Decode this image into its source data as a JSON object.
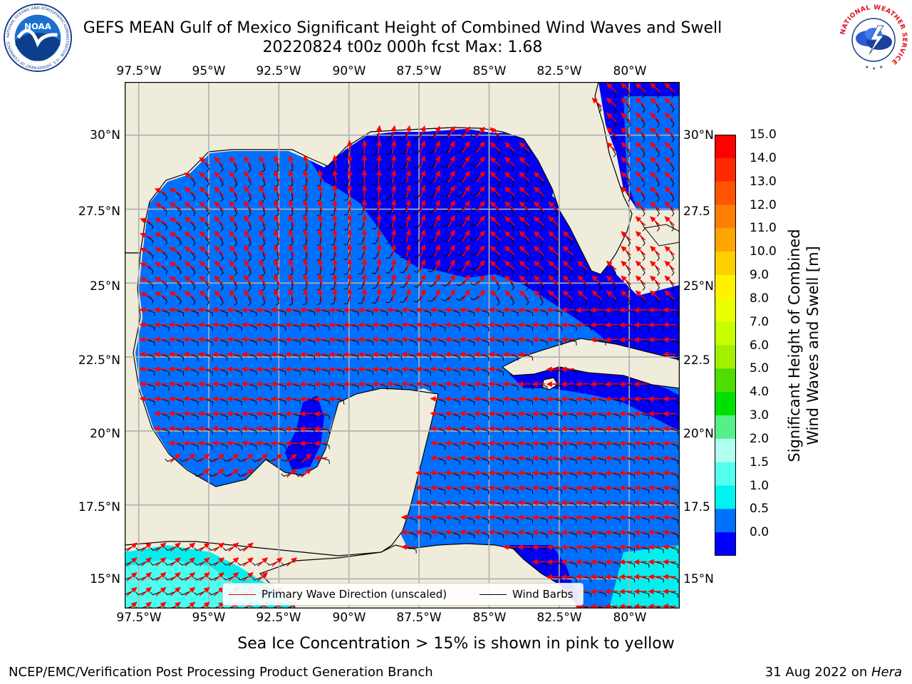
{
  "title": {
    "line1": "GEFS MEAN Gulf of Mexico Significant Height of Combined Wind Waves and Swell",
    "line2": "20220824 t00z 000h fcst   Max: 1.68"
  },
  "logos": {
    "noaa": {
      "text": "NOAA",
      "ring_text": "NATIONAL OCEANIC AND ATMOSPHERIC ADMINISTRATION · U.S. DEPARTMENT OF COMMERCE",
      "icon": "noaa-logo-icon"
    },
    "nws": {
      "ring_text": "NATIONAL WEATHER SERVICE",
      "icon": "nws-logo-icon"
    }
  },
  "axes": {
    "lon_ticks": [
      "97.5°W",
      "95°W",
      "92.5°W",
      "90°W",
      "87.5°W",
      "85°W",
      "82.5°W",
      "80°W"
    ],
    "lat_ticks": [
      "30°N",
      "27.5°N",
      "25°N",
      "22.5°N",
      "20°N",
      "17.5°N",
      "15°N"
    ],
    "lat_ticks_right": [
      "30°N",
      "27.5",
      "25°N",
      "22.5",
      "20°N",
      "17.5",
      "15°N"
    ],
    "lon_range": [
      -98,
      -78.2
    ],
    "lat_range": [
      14,
      31.8
    ],
    "grid": true
  },
  "colorbar": {
    "label_line1": "Significant Height of Combined",
    "label_line2": "Wind Waves and Swell [m]",
    "ticks": [
      "15.0",
      "14.0",
      "13.0",
      "12.0",
      "11.0",
      "10.0",
      "9.0",
      "8.0",
      "7.0",
      "6.0",
      "5.0",
      "4.0",
      "3.0",
      "2.0",
      "1.5",
      "1.0",
      "0.5",
      "0.0"
    ],
    "colors": [
      "#ff0000",
      "#ff2a00",
      "#ff5500",
      "#ff7f00",
      "#ffa500",
      "#ffcf00",
      "#fff200",
      "#eaff00",
      "#c8ff00",
      "#a0f000",
      "#4fdc00",
      "#00e000",
      "#55f08a",
      "#b0fff0",
      "#55ffee",
      "#00f2f2",
      "#0070ff",
      "#0000ff"
    ]
  },
  "map": {
    "colors": {
      "land": "#efecdb",
      "wave_0_0p5": "#0000f5",
      "wave_0p5_1": "#0070ff",
      "wave_1_1p5": "#00f0f0",
      "wave_1p5_2": "#55ffee",
      "grid": "#b0b0b0",
      "arrow": "#ff0000",
      "barb": "#000000"
    },
    "max_height_m": 1.68
  },
  "legend": {
    "wave_direction": "Primary Wave Direction (unscaled)",
    "wind_barbs": "Wind Barbs"
  },
  "notes": {
    "ice": "Sea Ice Concentration > 15% is shown in pink to yellow"
  },
  "footer": {
    "left": "NCEP/EMC/Verification Post Processing Product Generation Branch",
    "right_date": "31 Aug 2022 on ",
    "right_machine": "Hera"
  }
}
